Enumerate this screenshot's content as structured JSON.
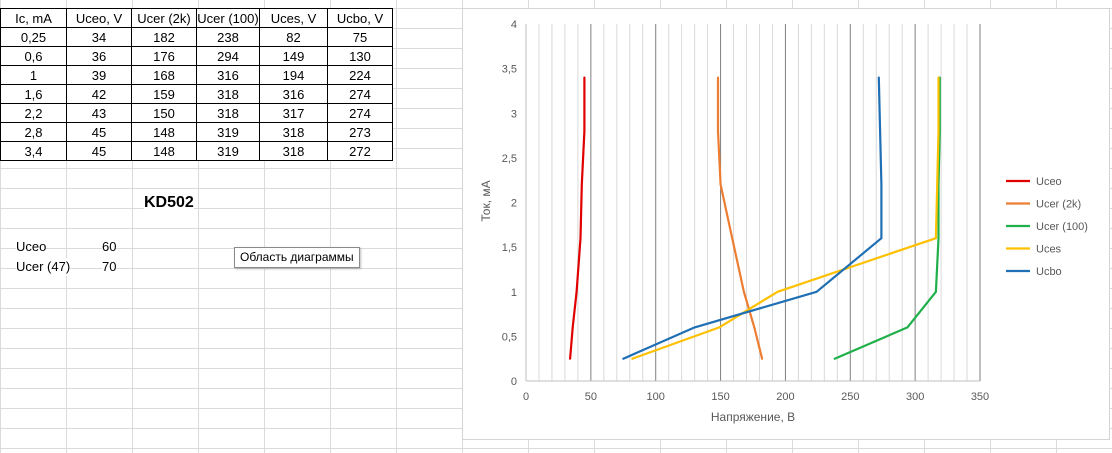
{
  "table": {
    "headers": [
      "Ic, mA",
      "Uceo, V",
      "Ucer (2k)",
      "Ucer (100)",
      "Uces, V",
      "Ucbo, V"
    ],
    "rows": [
      [
        "0,25",
        "34",
        "182",
        "238",
        "82",
        "75"
      ],
      [
        "0,6",
        "36",
        "176",
        "294",
        "149",
        "130"
      ],
      [
        "1",
        "39",
        "168",
        "316",
        "194",
        "224"
      ],
      [
        "1,6",
        "42",
        "159",
        "318",
        "316",
        "274"
      ],
      [
        "2,2",
        "43",
        "150",
        "318",
        "317",
        "274"
      ],
      [
        "2,8",
        "45",
        "148",
        "319",
        "318",
        "273"
      ],
      [
        "3,4",
        "45",
        "148",
        "319",
        "318",
        "272"
      ]
    ]
  },
  "title_cell": "KD502",
  "extra": [
    {
      "label": "Uceo",
      "value": "60"
    },
    {
      "label": "Ucer (47)",
      "value": "70"
    }
  ],
  "tooltip": "Область диаграммы",
  "chart_data": {
    "type": "line",
    "xlabel": "Напряжение, В",
    "ylabel": "Ток, мА",
    "xlim": [
      0,
      350
    ],
    "ylim": [
      0,
      4
    ],
    "xticks": [
      "0",
      "50",
      "100",
      "150",
      "200",
      "250",
      "300",
      "350"
    ],
    "yticks": [
      "0",
      "0,5",
      "1",
      "1,5",
      "2",
      "2,5",
      "3",
      "3,5",
      "4"
    ],
    "grid": true,
    "legend_position": "right",
    "y": [
      0.25,
      0.6,
      1,
      1.6,
      2.2,
      2.8,
      3.4
    ],
    "series": [
      {
        "name": "Uceo",
        "color": "#e00000",
        "x": [
          34,
          36,
          39,
          42,
          43,
          45,
          45
        ]
      },
      {
        "name": "Ucer (2k)",
        "color": "#ed7d31",
        "x": [
          182,
          176,
          168,
          159,
          150,
          148,
          148
        ]
      },
      {
        "name": "Ucer (100)",
        "color": "#1fb04a",
        "x": [
          238,
          294,
          316,
          318,
          318,
          319,
          319
        ]
      },
      {
        "name": "Uces",
        "color": "#ffc000",
        "x": [
          82,
          149,
          194,
          316,
          317,
          318,
          318
        ]
      },
      {
        "name": "Ucbo",
        "color": "#1f6fb4",
        "x": [
          75,
          130,
          224,
          274,
          274,
          273,
          272
        ]
      }
    ]
  }
}
